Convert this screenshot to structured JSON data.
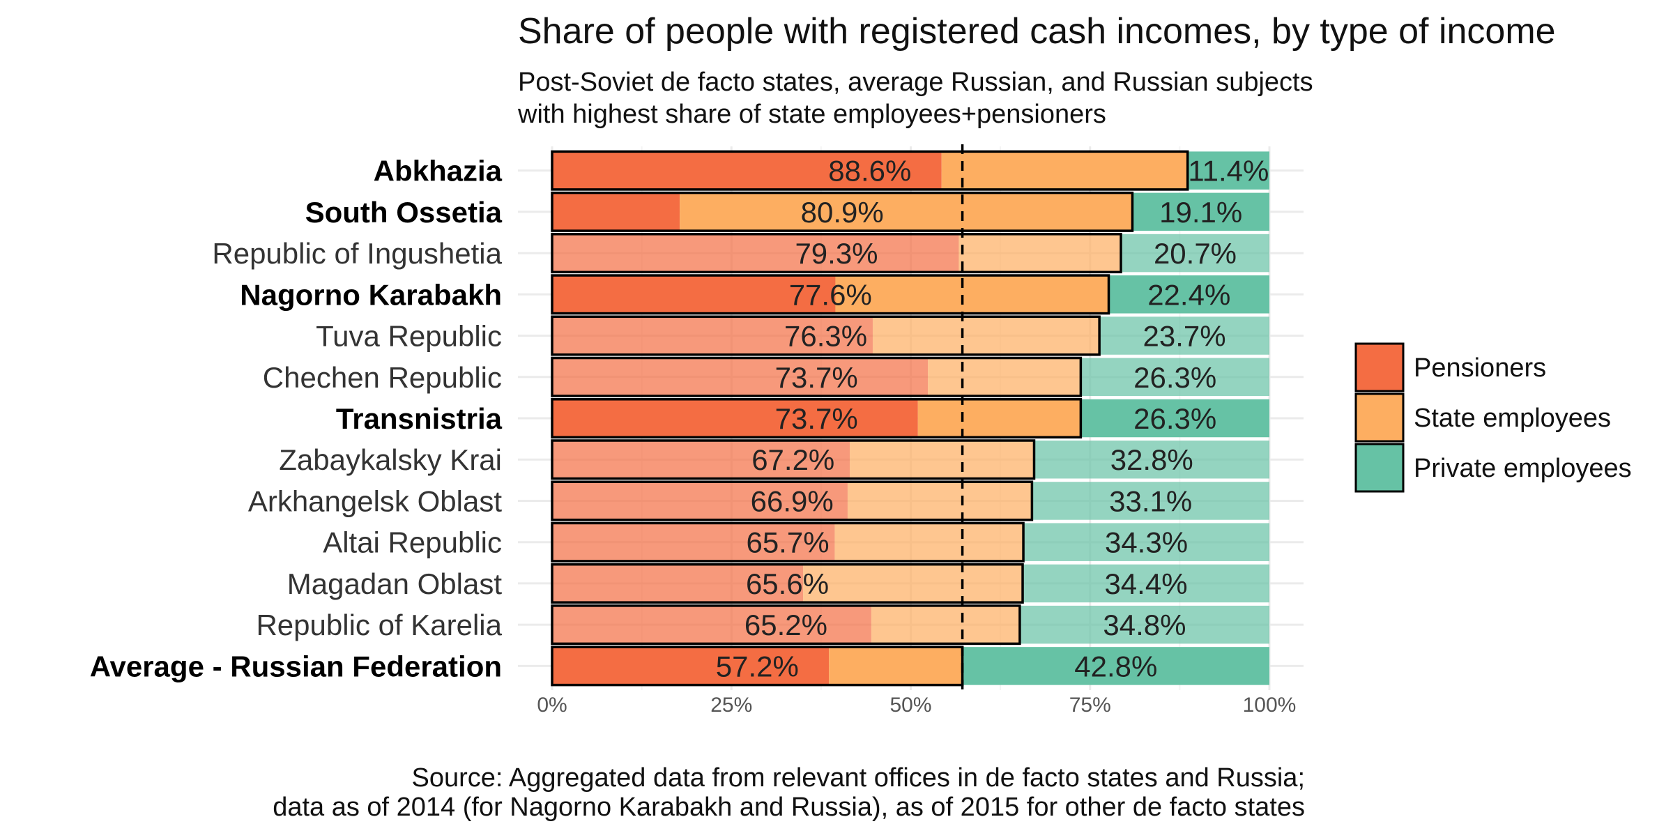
{
  "chart_data": {
    "type": "bar",
    "orientation": "horizontal",
    "stacked": true,
    "title": "Share of people with registered cash incomes, by type of income",
    "subtitle_lines": [
      "Post-Soviet de facto states, average Russian, and Russian subjects",
      "with highest share of state employees+pensioners"
    ],
    "caption_lines": [
      "Source: Aggregated data from relevant offices in de facto states and Russia;",
      "data as of 2014 (for Nagorno Karabakh and Russia), as of 2015 for other de facto states"
    ],
    "xlim": [
      0,
      100
    ],
    "x_ticks": [
      0,
      25,
      50,
      75,
      100
    ],
    "x_tick_labels": [
      "0%",
      "25%",
      "50%",
      "75%",
      "100%"
    ],
    "grid": true,
    "legend_position": "right",
    "reference_line": {
      "value": 57.2,
      "style": "dashed"
    },
    "series_colors": {
      "Pensioners": "#f46d43",
      "State employees": "#fdae61",
      "Private employees": "#66c2a5"
    },
    "legend": [
      "Pensioners",
      "State employees",
      "Private employees"
    ],
    "categories": [
      {
        "name": "Abkhazia",
        "highlight": true,
        "pensioners": 54.3,
        "state_employees": 34.3,
        "private_employees": 11.4,
        "public_label": "88.6%",
        "private_label": "11.4%"
      },
      {
        "name": "South Ossetia",
        "highlight": true,
        "pensioners": 17.8,
        "state_employees": 63.1,
        "private_employees": 19.1,
        "public_label": "80.9%",
        "private_label": "19.1%"
      },
      {
        "name": "Republic of Ingushetia",
        "highlight": false,
        "pensioners": 56.7,
        "state_employees": 22.6,
        "private_employees": 20.7,
        "public_label": "79.3%",
        "private_label": "20.7%"
      },
      {
        "name": "Nagorno Karabakh",
        "highlight": true,
        "pensioners": 39.5,
        "state_employees": 38.1,
        "private_employees": 22.4,
        "public_label": "77.6%",
        "private_label": "22.4%"
      },
      {
        "name": "Tuva Republic",
        "highlight": false,
        "pensioners": 44.7,
        "state_employees": 31.6,
        "private_employees": 23.7,
        "public_label": "76.3%",
        "private_label": "23.7%"
      },
      {
        "name": "Chechen Republic",
        "highlight": false,
        "pensioners": 52.4,
        "state_employees": 21.3,
        "private_employees": 26.3,
        "public_label": "73.7%",
        "private_label": "26.3%"
      },
      {
        "name": "Transnistria",
        "highlight": true,
        "pensioners": 51.0,
        "state_employees": 22.7,
        "private_employees": 26.3,
        "public_label": "73.7%",
        "private_label": "26.3%"
      },
      {
        "name": "Zabaykalsky Krai",
        "highlight": false,
        "pensioners": 41.5,
        "state_employees": 25.7,
        "private_employees": 32.8,
        "public_label": "67.2%",
        "private_label": "32.8%"
      },
      {
        "name": "Arkhangelsk Oblast",
        "highlight": false,
        "pensioners": 41.2,
        "state_employees": 25.7,
        "private_employees": 33.1,
        "public_label": "66.9%",
        "private_label": "33.1%"
      },
      {
        "name": "Altai Republic",
        "highlight": false,
        "pensioners": 39.4,
        "state_employees": 26.3,
        "private_employees": 34.3,
        "public_label": "65.7%",
        "private_label": "34.3%"
      },
      {
        "name": "Magadan Oblast",
        "highlight": false,
        "pensioners": 35.0,
        "state_employees": 30.6,
        "private_employees": 34.4,
        "public_label": "65.6%",
        "private_label": "34.4%"
      },
      {
        "name": "Republic of Karelia",
        "highlight": false,
        "pensioners": 44.5,
        "state_employees": 20.7,
        "private_employees": 34.8,
        "public_label": "65.2%",
        "private_label": "34.8%"
      },
      {
        "name": "Average - Russian Federation",
        "highlight": true,
        "pensioners": 38.6,
        "state_employees": 18.6,
        "private_employees": 42.8,
        "public_label": "57.2%",
        "private_label": "42.8%"
      }
    ]
  }
}
